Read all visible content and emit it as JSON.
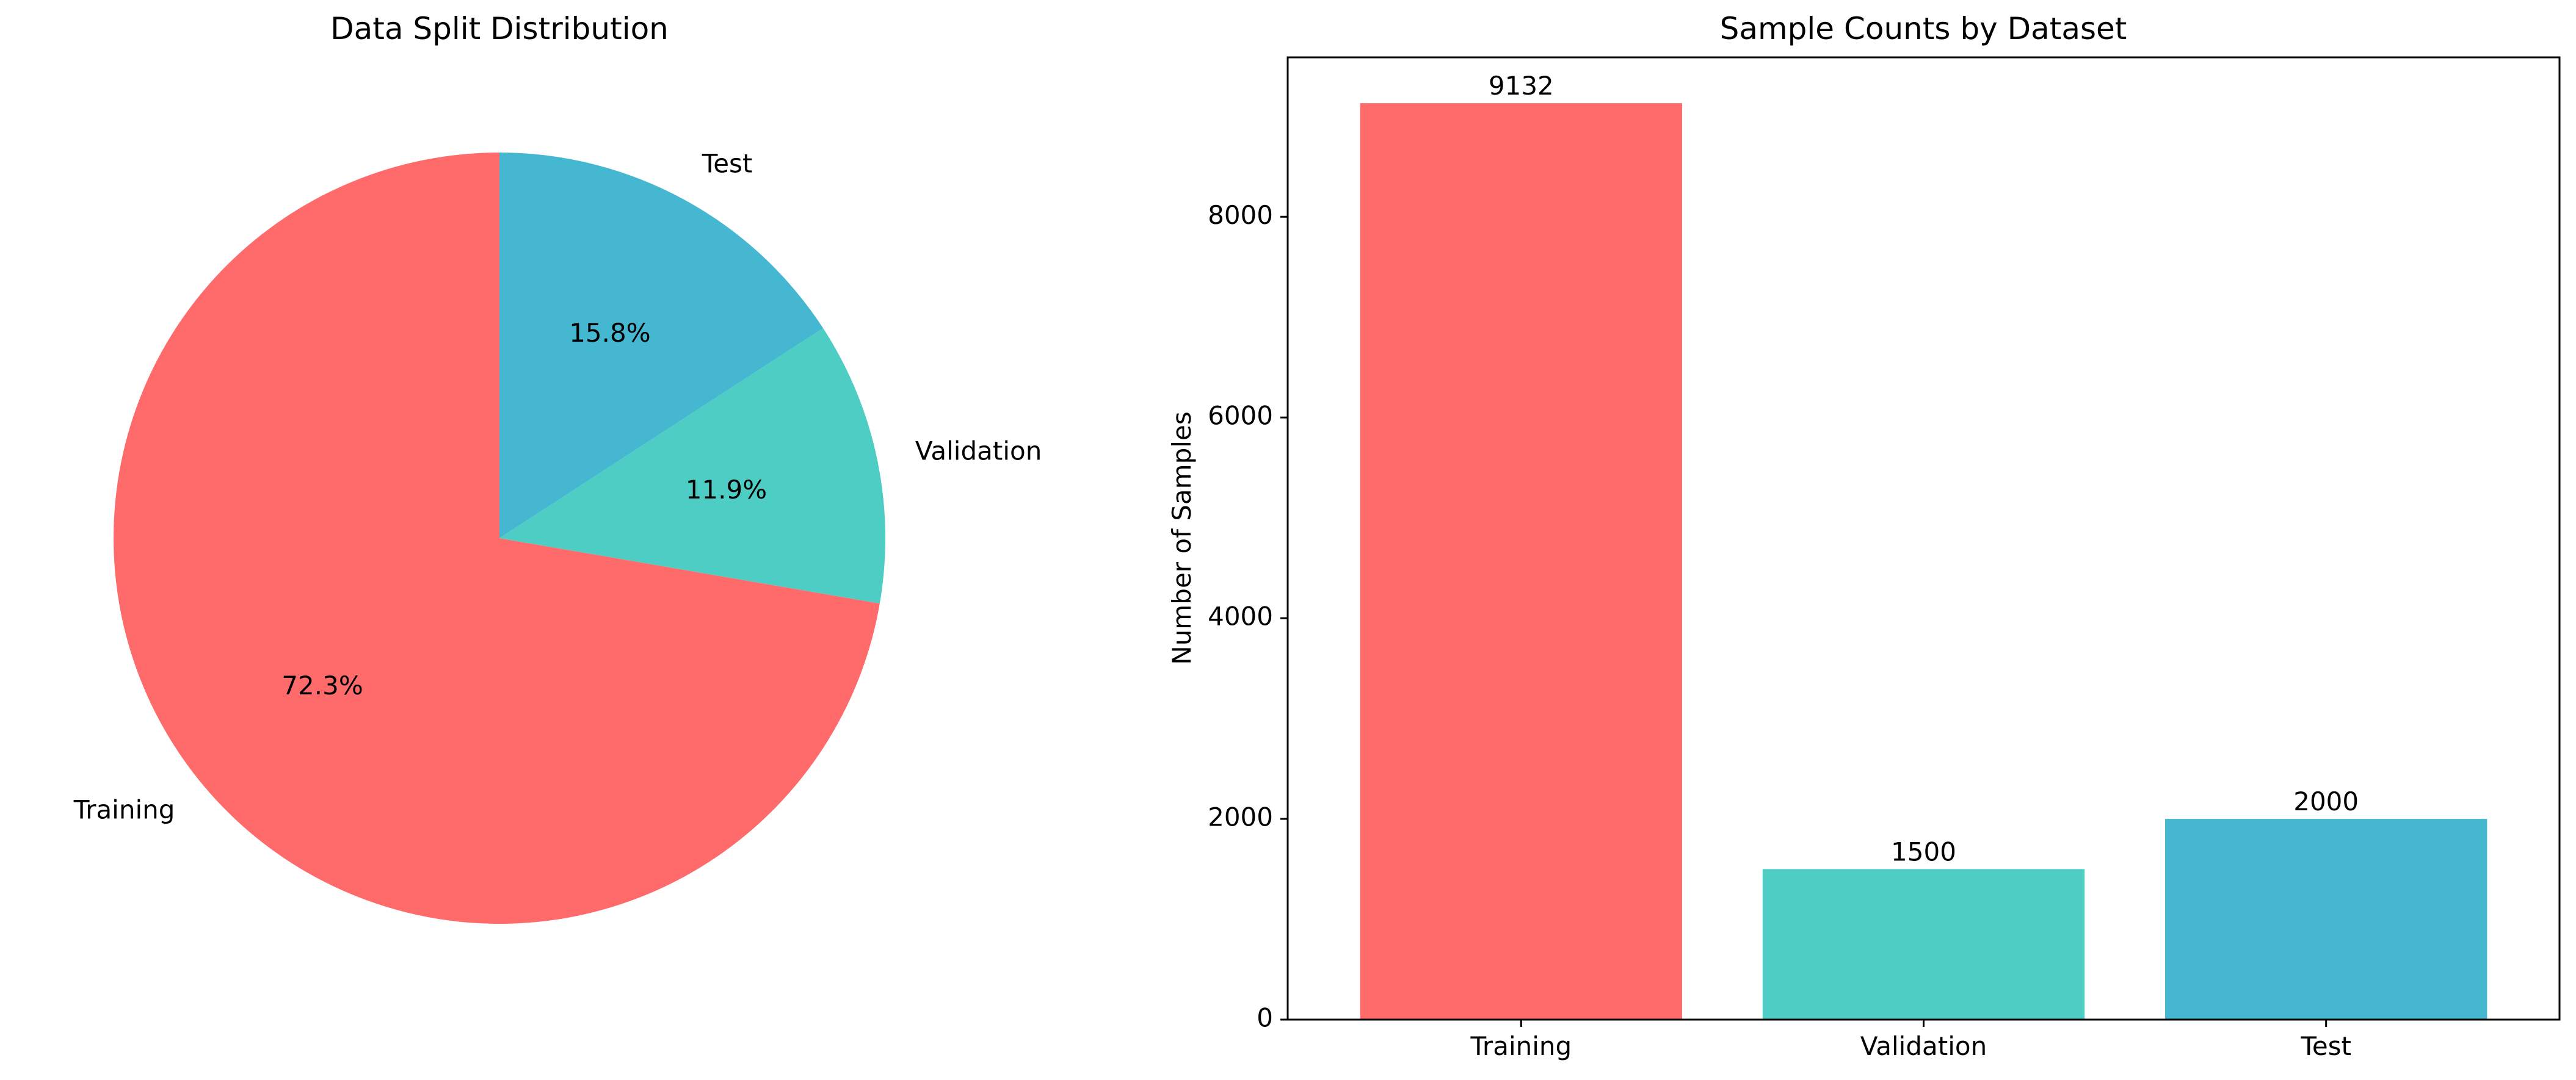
{
  "chart_data": [
    {
      "type": "pie",
      "title": "Data Split Distribution",
      "categories": [
        "Training",
        "Validation",
        "Test"
      ],
      "values": [
        9132,
        1500,
        2000
      ],
      "percent_labels": [
        "72.3%",
        "11.9%",
        "15.8%"
      ],
      "colors": [
        "#FF6B6B",
        "#4ECDC4",
        "#45B7D1"
      ],
      "start_angle_deg": 90,
      "direction": "counterclockwise"
    },
    {
      "type": "bar",
      "title": "Sample Counts by Dataset",
      "categories": [
        "Training",
        "Validation",
        "Test"
      ],
      "values": [
        9132,
        1500,
        2000
      ],
      "value_labels": [
        "9132",
        "1500",
        "2000"
      ],
      "colors": [
        "#FF6B6B",
        "#4ECDC4",
        "#45B7D1"
      ],
      "xlabel": "",
      "ylabel": "Number of Samples",
      "ylim": [
        0,
        9588.6
      ],
      "yticks": [
        0,
        2000,
        4000,
        6000,
        8000
      ],
      "grid": false
    }
  ]
}
